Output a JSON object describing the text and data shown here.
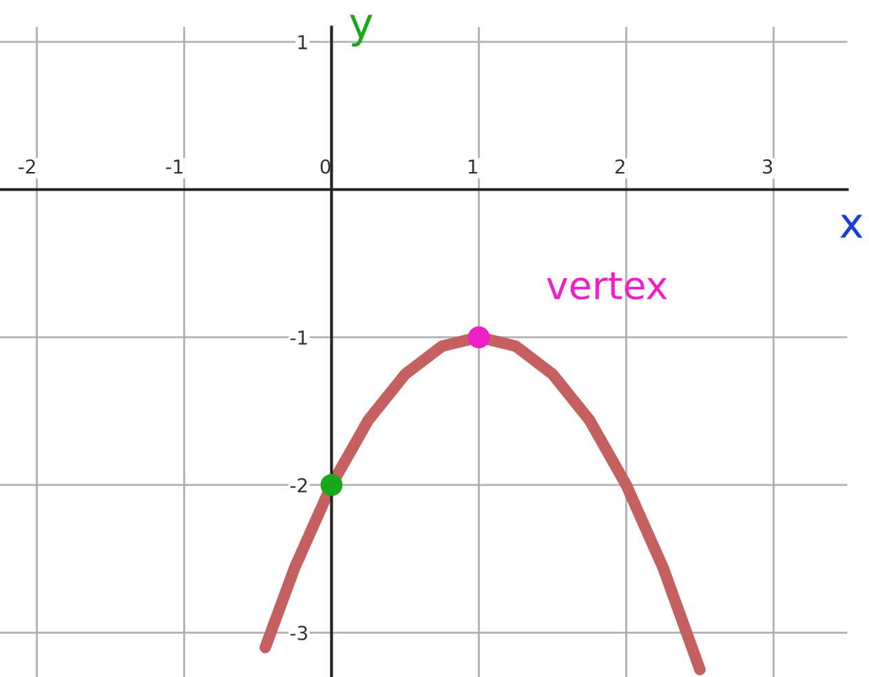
{
  "chart_data": {
    "type": "line",
    "xlabel": "x",
    "ylabel": "y",
    "xlim": [
      -2.25,
      3.5
    ],
    "ylim": [
      -3.3,
      1.1
    ],
    "xticks": [
      -2,
      -1,
      0,
      1,
      2,
      3
    ],
    "yticks": [
      -3,
      -2,
      -1,
      1
    ],
    "grid": true,
    "series": [
      {
        "marker": "none",
        "color": "#c46060",
        "x": [
          -0.45,
          -0.25,
          0,
          0.25,
          0.5,
          0.75,
          1,
          1.25,
          1.5,
          1.75,
          2,
          2.25,
          2.5
        ],
        "values": [
          -3.1,
          -2.56,
          -2,
          -1.56,
          -1.25,
          -1.06,
          -1,
          -1.06,
          -1.25,
          -1.56,
          -2,
          -2.56,
          -3.25
        ]
      },
      {
        "type": "scatter",
        "marker": "circle",
        "color": "#1aa81a",
        "x": [
          0
        ],
        "values": [
          -2
        ]
      },
      {
        "type": "scatter",
        "marker": "circle",
        "color": "#f020c8",
        "x": [
          1
        ],
        "values": [
          -1
        ]
      }
    ],
    "annotations": [
      {
        "text": "vertex",
        "x": 1,
        "y": -1
      }
    ]
  }
}
